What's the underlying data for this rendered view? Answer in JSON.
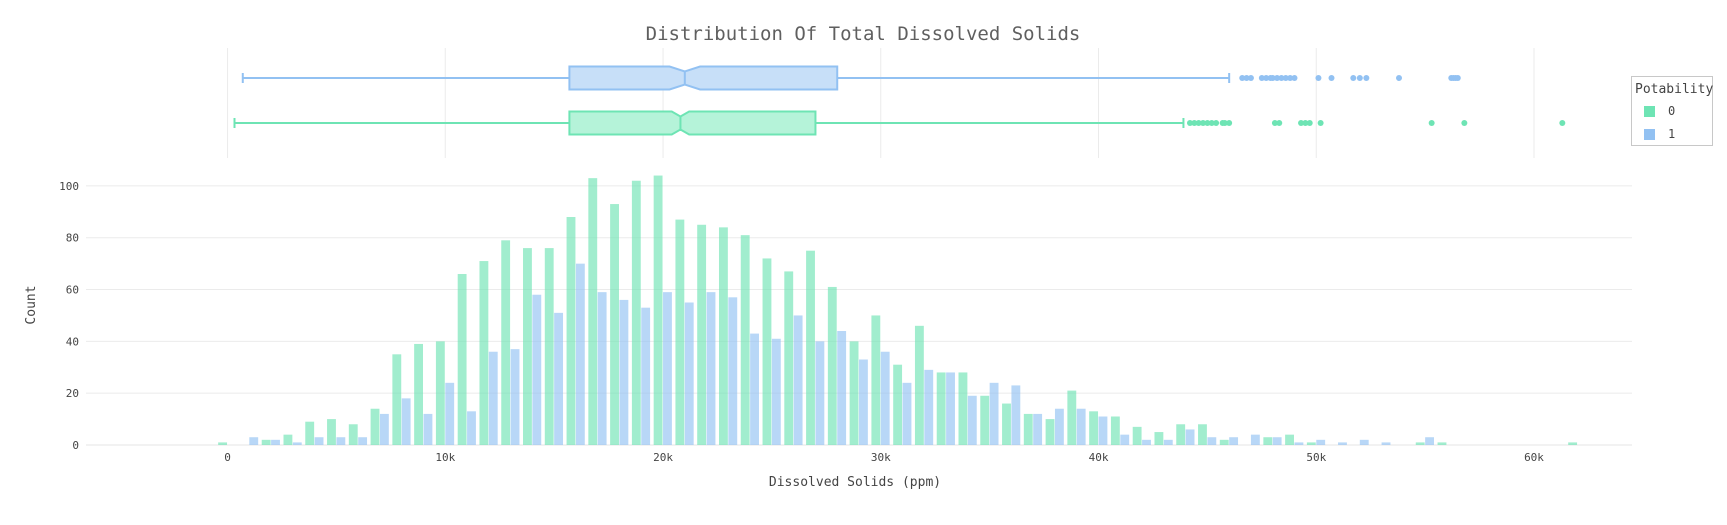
{
  "chart_data": {
    "type": "bar",
    "title": "Distribution Of Total Dissolved Solids",
    "xlabel": "Dissolved Solids (ppm)",
    "ylabel": "Count",
    "xlim": [
      -6500,
      64500
    ],
    "ylim": [
      0,
      110
    ],
    "x_ticks": [
      0,
      10000,
      20000,
      30000,
      40000,
      50000,
      60000
    ],
    "x_tick_labels": [
      "0",
      "10k",
      "20k",
      "30k",
      "40k",
      "50k",
      "60k"
    ],
    "y_ticks": [
      0,
      20,
      40,
      60,
      80,
      100
    ],
    "y_tick_labels": [
      "0",
      "20",
      "40",
      "60",
      "80",
      "100"
    ],
    "bin_start": 0,
    "bin_width": 1000,
    "legend": {
      "title": "Potability",
      "position": "top-right"
    },
    "series": [
      {
        "name": "0",
        "color": "#6ee4b4",
        "values": [
          1,
          0,
          2,
          4,
          9,
          10,
          8,
          14,
          35,
          39,
          40,
          66,
          71,
          79,
          76,
          76,
          88,
          103,
          93,
          102,
          104,
          87,
          85,
          84,
          81,
          72,
          67,
          75,
          61,
          40,
          50,
          31,
          46,
          28,
          28,
          19,
          16,
          12,
          10,
          21,
          13,
          11,
          7,
          5,
          8,
          8,
          2,
          0,
          3,
          4,
          1,
          0,
          0,
          0,
          0,
          1,
          1,
          0,
          0,
          0,
          0,
          0,
          1
        ]
      },
      {
        "name": "1",
        "color": "#92c1f2",
        "values": [
          0,
          3,
          2,
          1,
          3,
          3,
          3,
          12,
          18,
          12,
          24,
          13,
          36,
          37,
          58,
          51,
          70,
          59,
          56,
          53,
          59,
          55,
          59,
          57,
          43,
          41,
          50,
          40,
          44,
          33,
          36,
          24,
          29,
          28,
          19,
          24,
          23,
          12,
          14,
          14,
          11,
          4,
          2,
          2,
          6,
          3,
          3,
          4,
          3,
          1,
          2,
          1,
          2,
          1,
          0,
          3,
          0,
          0,
          0,
          0,
          0,
          0,
          0
        ]
      }
    ],
    "boxplots": [
      {
        "name": "1",
        "color": "#92c1f2",
        "fill": "#c7dff8",
        "whisker_low": 700,
        "q1": 15700,
        "median": 21000,
        "q3": 28000,
        "whisker_high": 46000,
        "notch_low": 20300,
        "notch_high": 21700,
        "outliers": [
          46600,
          46800,
          47000,
          47500,
          47700,
          47900,
          48000,
          48200,
          48400,
          48600,
          48800,
          49000,
          50100,
          50700,
          51700,
          52000,
          52300,
          53800,
          56200,
          56300,
          56400,
          56500
        ]
      },
      {
        "name": "0",
        "color": "#6ee4b4",
        "fill": "#b5f3d9",
        "whisker_low": 320,
        "q1": 15700,
        "median": 20800,
        "q3": 27000,
        "whisker_high": 43900,
        "notch_low": 20400,
        "notch_high": 21200,
        "outliers": [
          44200,
          44400,
          44600,
          44800,
          45000,
          45200,
          45400,
          45700,
          45800,
          46000,
          48100,
          48300,
          49300,
          49500,
          49700,
          50200,
          55300,
          56800,
          61300
        ]
      }
    ]
  }
}
